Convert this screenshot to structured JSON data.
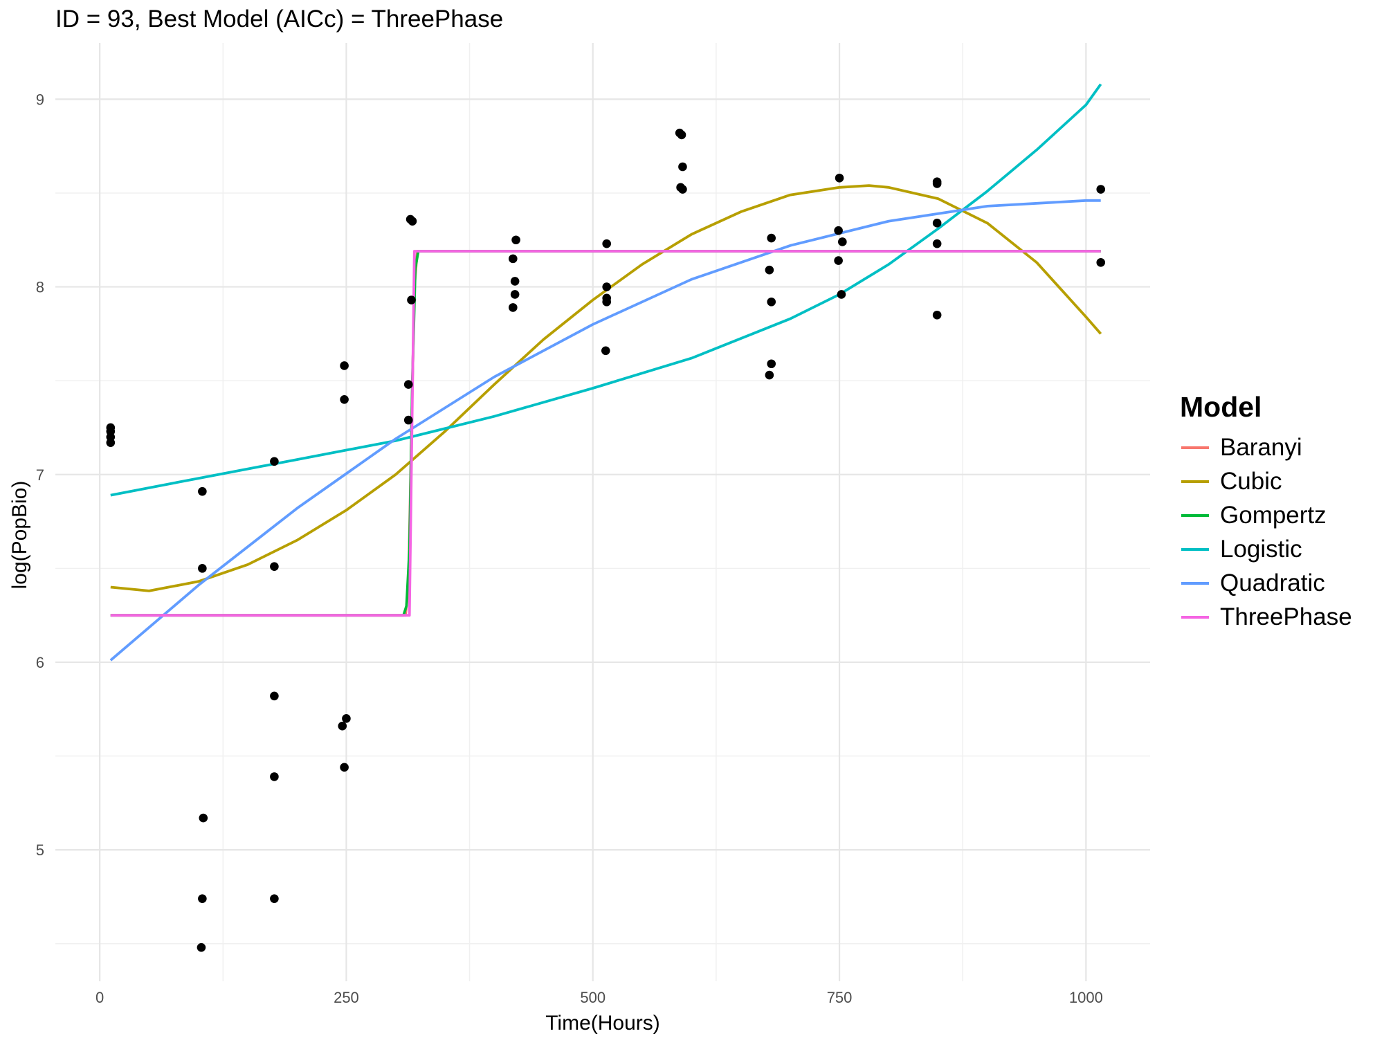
{
  "chart_data": {
    "type": "scatter",
    "title": "ID = 93, Best Model (AICc) = ThreePhase",
    "xlabel": "Time(Hours)",
    "ylabel": "log(PopBio)",
    "xlim": [
      -45,
      1065
    ],
    "ylim": [
      4.3,
      9.3
    ],
    "x_ticks": [
      0,
      250,
      500,
      750,
      1000
    ],
    "y_ticks": [
      5,
      6,
      7,
      8,
      9
    ],
    "grid": true,
    "legend": {
      "title": "Model",
      "position": "right"
    },
    "points": [
      [
        11,
        7.25
      ],
      [
        11,
        7.23
      ],
      [
        11,
        7.2
      ],
      [
        11,
        7.17
      ],
      [
        104,
        6.91
      ],
      [
        104,
        6.5
      ],
      [
        105,
        5.17
      ],
      [
        104,
        4.74
      ],
      [
        103,
        4.48
      ],
      [
        177,
        7.07
      ],
      [
        177,
        6.51
      ],
      [
        177,
        5.82
      ],
      [
        177,
        5.39
      ],
      [
        177,
        4.74
      ],
      [
        248,
        7.58
      ],
      [
        248,
        7.4
      ],
      [
        250,
        5.7
      ],
      [
        246,
        5.66
      ],
      [
        248,
        5.44
      ],
      [
        315,
        8.36
      ],
      [
        317,
        8.35
      ],
      [
        316,
        7.93
      ],
      [
        313,
        7.48
      ],
      [
        313,
        7.29
      ],
      [
        422,
        8.25
      ],
      [
        419,
        8.15
      ],
      [
        421,
        8.03
      ],
      [
        421,
        7.96
      ],
      [
        419,
        7.89
      ],
      [
        514,
        8.23
      ],
      [
        514,
        8.0
      ],
      [
        514,
        7.94
      ],
      [
        514,
        7.92
      ],
      [
        513,
        7.66
      ],
      [
        588,
        8.82
      ],
      [
        590,
        8.81
      ],
      [
        591,
        8.64
      ],
      [
        589,
        8.53
      ],
      [
        591,
        8.52
      ],
      [
        681,
        8.26
      ],
      [
        679,
        8.09
      ],
      [
        681,
        7.92
      ],
      [
        681,
        7.59
      ],
      [
        679,
        7.53
      ],
      [
        750,
        8.58
      ],
      [
        749,
        8.3
      ],
      [
        753,
        8.24
      ],
      [
        749,
        8.14
      ],
      [
        752,
        7.96
      ],
      [
        849,
        8.56
      ],
      [
        849,
        8.55
      ],
      [
        849,
        8.34
      ],
      [
        849,
        8.23
      ],
      [
        849,
        7.85
      ],
      [
        1015,
        8.52
      ],
      [
        1015,
        8.13
      ]
    ],
    "series": [
      {
        "name": "Baranyi",
        "color": "#F8766D",
        "x": [
          11,
          310,
          313,
          316,
          319,
          322,
          1015
        ],
        "y": [
          6.25,
          6.25,
          6.4,
          7.2,
          8.0,
          8.19,
          8.19
        ]
      },
      {
        "name": "Cubic",
        "color": "#B79F00",
        "x": [
          11,
          50,
          100,
          150,
          200,
          250,
          300,
          350,
          400,
          450,
          500,
          550,
          600,
          650,
          700,
          750,
          780,
          800,
          850,
          900,
          950,
          1000,
          1015
        ],
        "y": [
          6.4,
          6.38,
          6.43,
          6.52,
          6.65,
          6.81,
          7.0,
          7.23,
          7.48,
          7.72,
          7.93,
          8.12,
          8.28,
          8.4,
          8.49,
          8.53,
          8.54,
          8.53,
          8.47,
          8.34,
          8.13,
          7.84,
          7.75
        ]
      },
      {
        "name": "Gompertz",
        "color": "#00BA38",
        "x": [
          11,
          308,
          311,
          314,
          317,
          320,
          323,
          1015
        ],
        "y": [
          6.25,
          6.25,
          6.3,
          6.6,
          7.5,
          8.1,
          8.19,
          8.19
        ]
      },
      {
        "name": "Logistic",
        "color": "#00BFC4",
        "x": [
          11,
          100,
          200,
          300,
          400,
          500,
          600,
          700,
          750,
          800,
          850,
          900,
          950,
          1000,
          1015
        ],
        "y": [
          6.89,
          6.98,
          7.08,
          7.18,
          7.31,
          7.46,
          7.62,
          7.83,
          7.96,
          8.12,
          8.31,
          8.51,
          8.73,
          8.97,
          9.08
        ]
      },
      {
        "name": "Quadratic",
        "color": "#619CFF",
        "x": [
          11,
          100,
          200,
          300,
          400,
          500,
          600,
          700,
          800,
          900,
          1000,
          1015
        ],
        "y": [
          6.01,
          6.41,
          6.82,
          7.19,
          7.52,
          7.8,
          8.04,
          8.22,
          8.35,
          8.43,
          8.46,
          8.46
        ]
      },
      {
        "name": "ThreePhase",
        "color": "#F564E3",
        "x": [
          11,
          314,
          319,
          1015
        ],
        "y": [
          6.25,
          6.25,
          8.19,
          8.19
        ]
      }
    ]
  }
}
